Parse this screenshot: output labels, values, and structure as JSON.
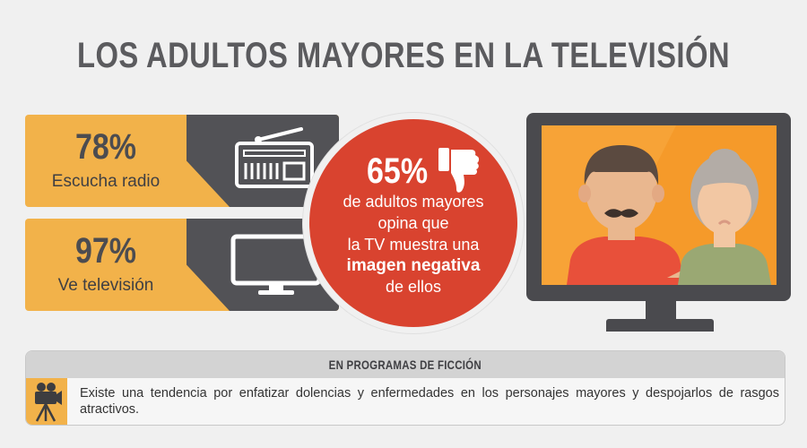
{
  "title": "LOS ADULTOS MAYORES EN LA TELEVISIÓN",
  "stats": [
    {
      "percent": "78%",
      "label": "Escucha radio",
      "icon": "radio-icon"
    },
    {
      "percent": "97%",
      "label": "Ve televisión",
      "icon": "tv-icon"
    }
  ],
  "highlight": {
    "percent": "65%",
    "icon": "thumbs-down-icon",
    "lines": [
      "de adultos mayores",
      "opina que",
      "la TV muestra una"
    ],
    "bold_line": "imagen negativa",
    "last_line": "de ellos"
  },
  "fiction": {
    "heading": "EN PROGRAMAS DE FICCIÓN",
    "icon": "movie-camera-icon",
    "text": "Existe una tendencia por enfatizar dolencias y enfermedades en los personajes mayores y despojarlos de rasgos atractivos."
  },
  "colors": {
    "orange": "#f2b24a",
    "dark_gray": "#525256",
    "red": "#d9432f",
    "tv_screen": "#f7a337"
  }
}
